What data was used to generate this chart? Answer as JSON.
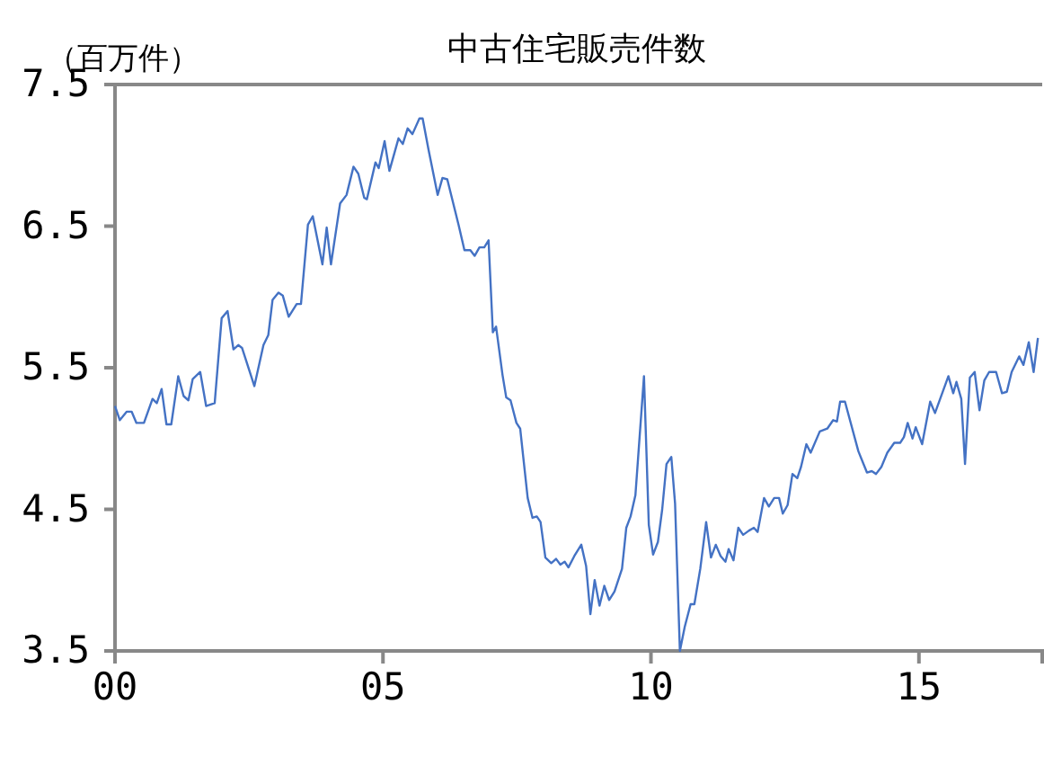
{
  "chart_data": {
    "type": "line",
    "title": "中古住宅販売件数",
    "ylabel": "（百万件）",
    "xlim": [
      2000,
      2017.3
    ],
    "xticks": [
      {
        "value": 2000,
        "label": "00"
      },
      {
        "value": 2005,
        "label": "05"
      },
      {
        "value": 2010,
        "label": "10"
      },
      {
        "value": 2015,
        "label": "15"
      }
    ],
    "ylim": [
      3.5,
      7.5
    ],
    "yticks": [
      {
        "value": 3.5,
        "label": "3.5"
      },
      {
        "value": 4.5,
        "label": "4.5"
      },
      {
        "value": 5.5,
        "label": "5.5"
      },
      {
        "value": 6.5,
        "label": "6.5"
      },
      {
        "value": 7.5,
        "label": "7.5"
      }
    ],
    "grid": false,
    "marker": "none",
    "line_style": "solid",
    "series": [
      {
        "color": "#4472c4",
        "x": [
          2000,
          2000.09,
          2000.22,
          2000.31,
          2000.4,
          2000.54,
          2000.7,
          2000.78,
          2000.87,
          2000.96,
          2001.05,
          2001.18,
          2001.28,
          2001.37,
          2001.45,
          2001.59,
          2001.7,
          2001.86,
          2001.99,
          2002.1,
          2002.21,
          2002.3,
          2002.37,
          2002.6,
          2002.77,
          2002.86,
          2002.94,
          2003.05,
          2003.13,
          2003.24,
          2003.39,
          2003.47,
          2003.6,
          2003.69,
          2003.87,
          2003.95,
          2004.03,
          2004.2,
          2004.32,
          2004.45,
          2004.54,
          2004.65,
          2004.7,
          2004.86,
          2004.92,
          2005.03,
          2005.12,
          2005.29,
          2005.37,
          2005.46,
          2005.55,
          2005.68,
          2005.74,
          2005.85,
          2006.02,
          2006.11,
          2006.2,
          2006.41,
          2006.52,
          2006.63,
          2006.71,
          2006.8,
          2006.89,
          2006.97,
          2007.05,
          2007.11,
          2007.23,
          2007.3,
          2007.38,
          2007.49,
          2007.56,
          2007.7,
          2007.79,
          2007.87,
          2007.94,
          2008.03,
          2008.14,
          2008.23,
          2008.31,
          2008.39,
          2008.46,
          2008.57,
          2008.7,
          2008.79,
          2008.87,
          2008.95,
          2009.04,
          2009.13,
          2009.22,
          2009.32,
          2009.46,
          2009.54,
          2009.62,
          2009.71,
          2009.87,
          2009.96,
          2010.04,
          2010.13,
          2010.21,
          2010.29,
          2010.38,
          2010.45,
          2010.54,
          2010.63,
          2010.74,
          2010.81,
          2010.92,
          2011.03,
          2011.12,
          2011.21,
          2011.3,
          2011.39,
          2011.45,
          2011.54,
          2011.63,
          2011.72,
          2011.83,
          2011.92,
          2011.99,
          2012.11,
          2012.2,
          2012.3,
          2012.39,
          2012.46,
          2012.55,
          2012.64,
          2012.73,
          2012.8,
          2012.9,
          2012.98,
          2013.15,
          2013.29,
          2013.4,
          2013.47,
          2013.53,
          2013.62,
          2013.87,
          2014.03,
          2014.12,
          2014.2,
          2014.3,
          2014.41,
          2014.54,
          2014.65,
          2014.72,
          2014.79,
          2014.88,
          2014.94,
          2015.06,
          2015.21,
          2015.3,
          2015.55,
          2015.64,
          2015.7,
          2015.79,
          2015.86,
          2015.95,
          2016.04,
          2016.13,
          2016.22,
          2016.31,
          2016.44,
          2016.55,
          2016.64,
          2016.73,
          2016.87,
          2016.95,
          2017.05,
          2017.14,
          2017.22
        ],
        "values": [
          5.23,
          5.13,
          5.19,
          5.19,
          5.11,
          5.11,
          5.28,
          5.25,
          5.35,
          5.1,
          5.1,
          5.44,
          5.3,
          5.27,
          5.42,
          5.47,
          5.23,
          5.25,
          5.85,
          5.9,
          5.63,
          5.66,
          5.64,
          5.37,
          5.66,
          5.73,
          5.98,
          6.03,
          6.01,
          5.86,
          5.95,
          5.95,
          6.51,
          6.57,
          6.23,
          6.49,
          6.23,
          6.66,
          6.72,
          6.92,
          6.87,
          6.7,
          6.69,
          6.95,
          6.91,
          7.1,
          6.89,
          7.12,
          7.08,
          7.19,
          7.15,
          7.26,
          7.26,
          7.04,
          6.72,
          6.84,
          6.83,
          6.51,
          6.33,
          6.33,
          6.29,
          6.35,
          6.35,
          6.4,
          5.75,
          5.79,
          5.45,
          5.29,
          5.27,
          5.11,
          5.07,
          4.58,
          4.44,
          4.45,
          4.41,
          4.16,
          4.12,
          4.15,
          4.11,
          4.13,
          4.09,
          4.17,
          4.25,
          4.1,
          3.76,
          4.0,
          3.82,
          3.96,
          3.86,
          3.92,
          4.08,
          4.37,
          4.45,
          4.6,
          5.44,
          4.39,
          4.18,
          4.27,
          4.5,
          4.82,
          4.87,
          4.54,
          3.5,
          3.67,
          3.83,
          3.83,
          4.08,
          4.41,
          4.16,
          4.25,
          4.17,
          4.13,
          4.22,
          4.14,
          4.37,
          4.32,
          4.35,
          4.37,
          4.34,
          4.58,
          4.52,
          4.58,
          4.58,
          4.47,
          4.53,
          4.75,
          4.72,
          4.8,
          4.96,
          4.9,
          5.05,
          5.07,
          5.13,
          5.12,
          5.26,
          5.26,
          4.91,
          4.76,
          4.77,
          4.75,
          4.8,
          4.9,
          4.97,
          4.97,
          5.01,
          5.11,
          5.0,
          5.08,
          4.96,
          5.26,
          5.18,
          5.44,
          5.32,
          5.4,
          5.28,
          4.82,
          5.43,
          5.47,
          5.2,
          5.41,
          5.47,
          5.47,
          5.32,
          5.33,
          5.47,
          5.58,
          5.52,
          5.68,
          5.47,
          5.71
        ]
      }
    ]
  }
}
